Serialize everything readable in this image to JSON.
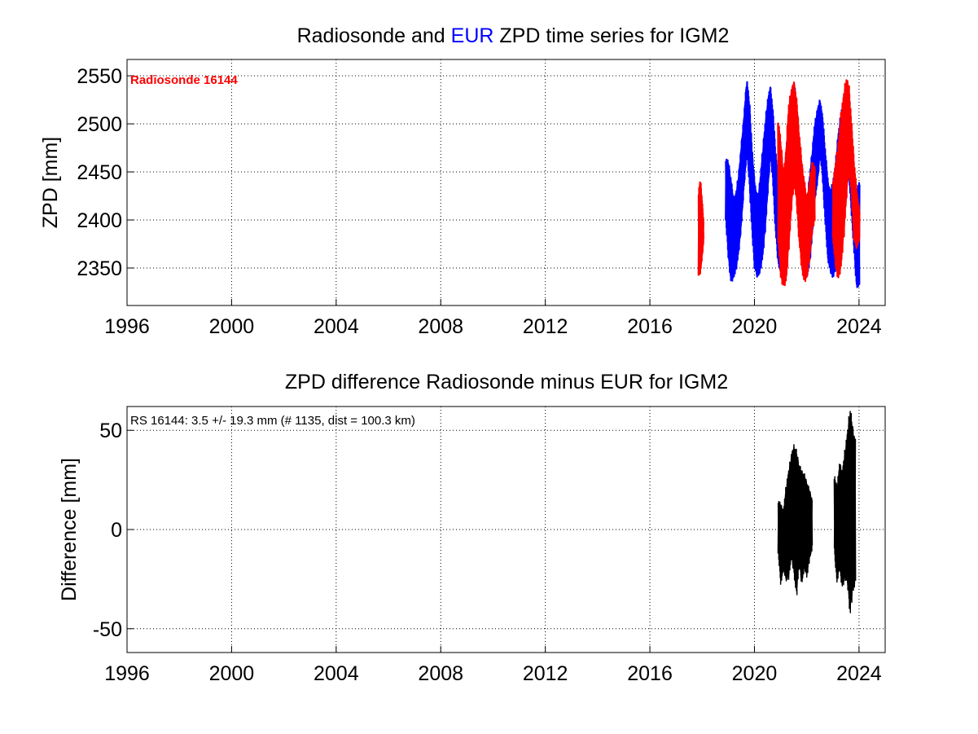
{
  "colors": {
    "background": "#ffffff",
    "eur": "#0000ff",
    "radiosonde": "#ff0000",
    "difference": "#000000",
    "grid": "#000000"
  },
  "chart_data": [
    {
      "type": "line",
      "title": {
        "prefix": "Radiosonde and ",
        "highlight": "EUR",
        "suffix": " ZPD time series for IGM2"
      },
      "xlabel": "",
      "ylabel": "ZPD [mm]",
      "xlim": [
        1996,
        2025
      ],
      "ylim": [
        2311,
        2567
      ],
      "xticks": [
        1996,
        2000,
        2004,
        2008,
        2012,
        2016,
        2020,
        2024
      ],
      "yticks": [
        2350,
        2400,
        2450,
        2500,
        2550
      ],
      "grid": true,
      "annotation": "Radiosonde 16144",
      "series": [
        {
          "key": "eur",
          "name": "EUR",
          "x": [
            2018.9,
            2019.0,
            2019.1,
            2019.2,
            2019.3,
            2019.4,
            2019.5,
            2019.6,
            2019.7,
            2019.8,
            2019.9,
            2020.0,
            2020.1,
            2020.2,
            2020.3,
            2020.4,
            2020.5,
            2020.6,
            2020.7,
            2020.8,
            2020.9,
            2021.0,
            2021.1,
            2021.2,
            2021.3,
            2021.4,
            2021.5,
            2021.6,
            2021.7,
            2021.8,
            2021.9,
            2022.0,
            2022.1,
            2022.2,
            2022.3,
            2022.4,
            2022.5,
            2022.6,
            2022.7,
            2022.8,
            2022.9,
            2023.0,
            2023.1,
            2023.2,
            2023.3,
            2023.4,
            2023.5,
            2023.6,
            2023.7,
            2023.8,
            2023.9,
            2024.0
          ],
          "low": [
            2400,
            2360,
            2335,
            2340,
            2350,
            2370,
            2400,
            2440,
            2470,
            2440,
            2390,
            2350,
            2340,
            2345,
            2360,
            2390,
            2430,
            2470,
            2440,
            2390,
            2355,
            2345,
            2340,
            2360,
            2400,
            2430,
            2460,
            2430,
            2390,
            2360,
            2345,
            2340,
            2355,
            2385,
            2420,
            2440,
            2470,
            2445,
            2400,
            2360,
            2345,
            2340,
            2350,
            2380,
            2410,
            2440,
            2470,
            2450,
            2410,
            2370,
            2330,
            2330
          ],
          "high": [
            2465,
            2460,
            2440,
            2420,
            2430,
            2450,
            2480,
            2510,
            2545,
            2520,
            2470,
            2440,
            2420,
            2440,
            2470,
            2500,
            2525,
            2540,
            2510,
            2470,
            2440,
            2420,
            2440,
            2470,
            2500,
            2525,
            2545,
            2520,
            2480,
            2450,
            2430,
            2420,
            2445,
            2470,
            2500,
            2515,
            2525,
            2505,
            2470,
            2440,
            2430,
            2440,
            2460,
            2490,
            2510,
            2525,
            2530,
            2510,
            2480,
            2450,
            2430,
            2440
          ]
        },
        {
          "key": "radiosonde",
          "name": "Radiosonde 16144",
          "x": [
            2017.86,
            2017.92,
            2017.98,
            2018.04,
            2020.9,
            2021.0,
            2021.1,
            2021.2,
            2021.3,
            2021.4,
            2021.5,
            2021.6,
            2021.7,
            2021.8,
            2021.9,
            2022.0,
            2022.1,
            2022.2,
            2022.3,
            2023.0,
            2023.1,
            2023.2,
            2023.3,
            2023.4,
            2023.5,
            2023.6,
            2023.7,
            2023.8,
            2023.9,
            2024.0
          ],
          "low": [
            2342,
            2345,
            2360,
            2380,
            2380,
            2340,
            2330,
            2335,
            2370,
            2410,
            2440,
            2420,
            2380,
            2350,
            2335,
            2340,
            2360,
            2390,
            2400,
            2380,
            2350,
            2338,
            2350,
            2380,
            2420,
            2455,
            2430,
            2380,
            2370,
            2380
          ],
          "high": [
            2430,
            2442,
            2420,
            2395,
            2505,
            2480,
            2450,
            2470,
            2520,
            2535,
            2545,
            2525,
            2490,
            2460,
            2440,
            2420,
            2440,
            2460,
            2455,
            2440,
            2460,
            2480,
            2510,
            2530,
            2548,
            2540,
            2500,
            2460,
            2430,
            2410
          ]
        }
      ]
    },
    {
      "type": "line",
      "title": "ZPD difference Radiosonde minus EUR for IGM2",
      "xlabel": "",
      "ylabel": "Difference [mm]",
      "xlim": [
        1996,
        2025
      ],
      "ylim": [
        -62,
        62
      ],
      "xticks": [
        1996,
        2000,
        2004,
        2008,
        2012,
        2016,
        2020,
        2024
      ],
      "yticks": [
        -50,
        0,
        50
      ],
      "ytick_labels": [
        "-50",
        "0",
        "50"
      ],
      "grid": true,
      "annotation": "RS 16144: 3.5 +/- 19.3 mm (# 1135, dist = 100.3 km)",
      "series": [
        {
          "key": "difference",
          "x": [
            2020.9,
            2021.0,
            2021.1,
            2021.2,
            2021.3,
            2021.4,
            2021.5,
            2021.6,
            2021.7,
            2021.8,
            2021.9,
            2022.0,
            2022.1,
            2022.2,
            2023.05,
            2023.15,
            2023.25,
            2023.35,
            2023.45,
            2023.55,
            2023.65,
            2023.75,
            2023.85
          ],
          "low": [
            -12,
            -28,
            -20,
            -26,
            -25,
            -15,
            -22,
            -34,
            -18,
            -28,
            -20,
            -24,
            -15,
            -10,
            -12,
            -27,
            -20,
            -30,
            -25,
            -28,
            -43,
            -32,
            -28
          ],
          "high": [
            15,
            13,
            10,
            22,
            30,
            38,
            43,
            40,
            33,
            30,
            28,
            24,
            20,
            15,
            27,
            22,
            34,
            30,
            40,
            50,
            62,
            52,
            45
          ]
        }
      ]
    }
  ]
}
